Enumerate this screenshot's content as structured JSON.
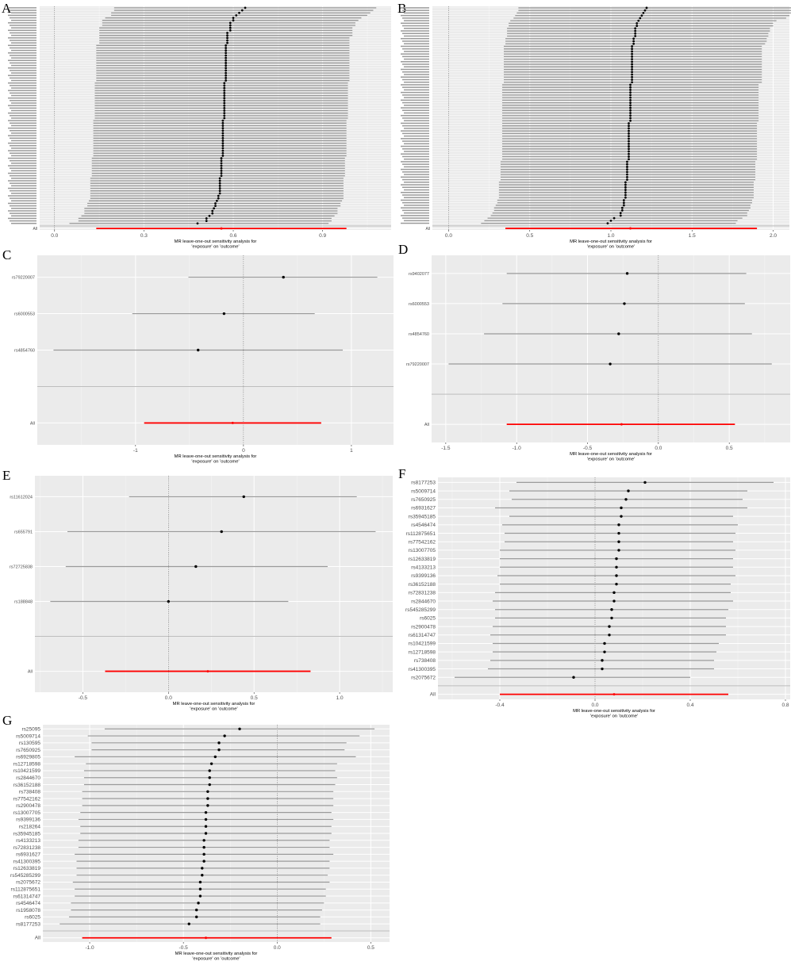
{
  "colors": {
    "panel_bg": "#ebebeb",
    "grid": "#ffffff",
    "ci": "#9a9a9a",
    "point": "#000000",
    "overall": "#ff0000",
    "separator": "#bdbdbd",
    "null_line": "#555555"
  },
  "panels": [
    {
      "letter": "A",
      "chart_type": "forest",
      "xlabel": [
        "MR leave-one-out sensitivity analysis for",
        "'exposure' on 'outcome'"
      ],
      "ticks": [
        "0.0",
        "0.3",
        "0.6",
        "0.9"
      ],
      "xlim": [
        -0.05,
        1.13
      ],
      "null_value": 0,
      "overall_label": "All",
      "overall": {
        "b": 0.56,
        "lo": 0.14,
        "hi": 0.98
      },
      "b": [
        0.64,
        0.63,
        0.62,
        0.61,
        0.6,
        0.6,
        0.59,
        0.59,
        0.59,
        0.59,
        0.58,
        0.58,
        0.58,
        0.58,
        0.58,
        0.575,
        0.575,
        0.575,
        0.575,
        0.575,
        0.575,
        0.575,
        0.575,
        0.575,
        0.575,
        0.575,
        0.575,
        0.575,
        0.575,
        0.575,
        0.57,
        0.57,
        0.57,
        0.57,
        0.57,
        0.57,
        0.57,
        0.57,
        0.57,
        0.57,
        0.57,
        0.57,
        0.57,
        0.57,
        0.57,
        0.565,
        0.565,
        0.565,
        0.565,
        0.565,
        0.565,
        0.565,
        0.565,
        0.565,
        0.565,
        0.565,
        0.565,
        0.565,
        0.565,
        0.565,
        0.56,
        0.56,
        0.56,
        0.56,
        0.56,
        0.56,
        0.56,
        0.56,
        0.555,
        0.555,
        0.555,
        0.555,
        0.555,
        0.555,
        0.555,
        0.55,
        0.55,
        0.545,
        0.54,
        0.54,
        0.535,
        0.53,
        0.53,
        0.52,
        0.51,
        0.51,
        0.48
      ],
      "lo": [
        0.2,
        0.2,
        0.19,
        0.19,
        0.17,
        0.16,
        0.16,
        0.16,
        0.15,
        0.15,
        0.15,
        0.15,
        0.15,
        0.15,
        0.15,
        0.14,
        0.14,
        0.14,
        0.14,
        0.14,
        0.14,
        0.14,
        0.14,
        0.14,
        0.14,
        0.14,
        0.14,
        0.14,
        0.14,
        0.14,
        0.135,
        0.135,
        0.135,
        0.135,
        0.135,
        0.135,
        0.135,
        0.135,
        0.135,
        0.135,
        0.135,
        0.135,
        0.135,
        0.135,
        0.135,
        0.13,
        0.13,
        0.13,
        0.13,
        0.13,
        0.13,
        0.13,
        0.13,
        0.13,
        0.13,
        0.13,
        0.13,
        0.13,
        0.13,
        0.13,
        0.125,
        0.125,
        0.125,
        0.125,
        0.125,
        0.125,
        0.125,
        0.125,
        0.12,
        0.12,
        0.12,
        0.12,
        0.12,
        0.12,
        0.12,
        0.12,
        0.12,
        0.115,
        0.11,
        0.11,
        0.1,
        0.1,
        0.1,
        0.09,
        0.08,
        0.08,
        0.05
      ],
      "hi": [
        1.08,
        1.07,
        1.06,
        1.05,
        1.03,
        1.02,
        1.01,
        1.01,
        1.0,
        1.0,
        1.0,
        1.0,
        0.99,
        0.99,
        0.99,
        0.99,
        0.99,
        0.99,
        0.99,
        0.99,
        0.99,
        0.99,
        0.99,
        0.99,
        0.99,
        0.99,
        0.99,
        0.99,
        0.99,
        0.99,
        0.985,
        0.985,
        0.985,
        0.985,
        0.985,
        0.985,
        0.985,
        0.985,
        0.985,
        0.985,
        0.985,
        0.985,
        0.985,
        0.985,
        0.985,
        0.98,
        0.98,
        0.98,
        0.98,
        0.98,
        0.98,
        0.98,
        0.98,
        0.98,
        0.98,
        0.98,
        0.98,
        0.98,
        0.98,
        0.98,
        0.975,
        0.975,
        0.975,
        0.975,
        0.975,
        0.975,
        0.975,
        0.975,
        0.97,
        0.97,
        0.97,
        0.97,
        0.97,
        0.97,
        0.97,
        0.97,
        0.97,
        0.965,
        0.96,
        0.96,
        0.95,
        0.95,
        0.95,
        0.94,
        0.93,
        0.93,
        0.92
      ]
    },
    {
      "letter": "B",
      "chart_type": "forest",
      "xlabel": [
        "MR leave-one-out sensitivity analysis for",
        "'exposure' on 'outcome'"
      ],
      "ticks": [
        "0.0",
        "0.5",
        "1.0",
        "1.5",
        "2.0"
      ],
      "xlim": [
        -0.1,
        2.1
      ],
      "null_value": 0,
      "overall_label": "All",
      "overall": {
        "b": 1.12,
        "lo": 0.35,
        "hi": 1.9
      },
      "b": [
        1.22,
        1.21,
        1.2,
        1.19,
        1.18,
        1.17,
        1.16,
        1.16,
        1.15,
        1.15,
        1.15,
        1.15,
        1.14,
        1.14,
        1.14,
        1.13,
        1.13,
        1.13,
        1.13,
        1.13,
        1.13,
        1.13,
        1.13,
        1.13,
        1.13,
        1.13,
        1.13,
        1.13,
        1.13,
        1.13,
        1.12,
        1.12,
        1.12,
        1.12,
        1.12,
        1.12,
        1.12,
        1.12,
        1.12,
        1.12,
        1.12,
        1.12,
        1.12,
        1.12,
        1.12,
        1.11,
        1.11,
        1.11,
        1.11,
        1.11,
        1.11,
        1.11,
        1.11,
        1.11,
        1.11,
        1.11,
        1.11,
        1.11,
        1.11,
        1.11,
        1.1,
        1.1,
        1.1,
        1.1,
        1.1,
        1.1,
        1.1,
        1.1,
        1.09,
        1.09,
        1.09,
        1.09,
        1.09,
        1.09,
        1.09,
        1.08,
        1.08,
        1.08,
        1.07,
        1.07,
        1.06,
        1.06,
        1.02,
        1.0,
        0.98
      ],
      "lo": [
        0.43,
        0.43,
        0.42,
        0.41,
        0.4,
        0.38,
        0.37,
        0.37,
        0.36,
        0.36,
        0.36,
        0.36,
        0.35,
        0.35,
        0.35,
        0.34,
        0.34,
        0.34,
        0.34,
        0.34,
        0.34,
        0.34,
        0.34,
        0.34,
        0.34,
        0.34,
        0.34,
        0.34,
        0.34,
        0.34,
        0.33,
        0.33,
        0.33,
        0.33,
        0.33,
        0.33,
        0.33,
        0.33,
        0.33,
        0.33,
        0.33,
        0.33,
        0.33,
        0.33,
        0.33,
        0.33,
        0.33,
        0.33,
        0.33,
        0.33,
        0.33,
        0.33,
        0.33,
        0.33,
        0.33,
        0.33,
        0.33,
        0.33,
        0.33,
        0.33,
        0.32,
        0.32,
        0.32,
        0.32,
        0.32,
        0.32,
        0.32,
        0.32,
        0.31,
        0.31,
        0.31,
        0.31,
        0.31,
        0.31,
        0.31,
        0.3,
        0.3,
        0.29,
        0.28,
        0.28,
        0.27,
        0.26,
        0.24,
        0.22,
        0.2
      ],
      "hi": [
        2.14,
        2.13,
        2.12,
        2.1,
        2.08,
        2.02,
        2.0,
        2.0,
        1.98,
        1.98,
        1.97,
        1.97,
        1.96,
        1.96,
        1.95,
        1.93,
        1.93,
        1.93,
        1.93,
        1.93,
        1.93,
        1.93,
        1.93,
        1.93,
        1.93,
        1.93,
        1.93,
        1.93,
        1.93,
        1.93,
        1.91,
        1.91,
        1.91,
        1.91,
        1.91,
        1.91,
        1.91,
        1.91,
        1.91,
        1.91,
        1.91,
        1.91,
        1.91,
        1.91,
        1.91,
        1.9,
        1.9,
        1.9,
        1.9,
        1.9,
        1.9,
        1.9,
        1.9,
        1.9,
        1.9,
        1.9,
        1.9,
        1.9,
        1.9,
        1.9,
        1.89,
        1.89,
        1.89,
        1.89,
        1.89,
        1.89,
        1.89,
        1.89,
        1.88,
        1.88,
        1.88,
        1.88,
        1.88,
        1.88,
        1.88,
        1.87,
        1.87,
        1.86,
        1.86,
        1.85,
        1.84,
        1.84,
        1.81,
        1.78,
        1.77
      ]
    },
    {
      "letter": "C",
      "chart_type": "forest",
      "xlabel": [
        "MR leave-one-out sensitivity analysis for",
        "'exposure' on 'outcome'"
      ],
      "ticks": [
        "-1",
        "0",
        "1"
      ],
      "xlim": [
        -1.91,
        1.39
      ],
      "null_value": 0,
      "overall_label": "All",
      "overall": {
        "b": -0.1,
        "lo": -0.92,
        "hi": 0.72
      },
      "snps": [
        "rs79220007",
        "rs6000553",
        "rs4854760"
      ],
      "b": [
        0.37,
        -0.18,
        -0.42
      ],
      "lo": [
        -0.51,
        -1.03,
        -1.76
      ],
      "hi": [
        1.24,
        0.66,
        0.92
      ]
    },
    {
      "letter": "D",
      "chart_type": "forest",
      "xlabel": [
        "MR leave-one-out sensitivity analysis for",
        "'exposure' on 'outcome'"
      ],
      "ticks": [
        "-1.5",
        "-1.0",
        "-0.5",
        "0.0",
        "0.5"
      ],
      "xlim": [
        -1.6,
        0.93
      ],
      "null_value": 0,
      "overall_label": "All",
      "overall": {
        "b": -0.26,
        "lo": -1.07,
        "hi": 0.54
      },
      "snps": [
        "rs9402077",
        "rs6000553",
        "rs4854760",
        "rs79220007"
      ],
      "b": [
        -0.22,
        -0.24,
        -0.28,
        -0.34
      ],
      "lo": [
        -1.07,
        -1.1,
        -1.23,
        -1.48
      ],
      "hi": [
        0.62,
        0.61,
        0.66,
        0.8
      ]
    },
    {
      "letter": "E",
      "chart_type": "forest",
      "xlabel": [
        "MR leave-one-out sensitivity analysis for",
        "'exposure' on 'outcome'"
      ],
      "ticks": [
        "-0.5",
        "0.0",
        "0.5",
        "1.0"
      ],
      "xlim": [
        -0.78,
        1.31
      ],
      "null_value": 0,
      "overall_label": "All",
      "overall": {
        "b": 0.23,
        "lo": -0.37,
        "hi": 0.83
      },
      "snps": [
        "rs11612024",
        "rs655791",
        "rs72725838",
        "rs188848"
      ],
      "b": [
        0.44,
        0.31,
        0.16,
        0.0
      ],
      "lo": [
        -0.23,
        -0.59,
        -0.6,
        -0.69
      ],
      "hi": [
        1.1,
        1.21,
        0.93,
        0.7
      ]
    },
    {
      "letter": "F",
      "chart_type": "forest",
      "xlabel": [
        "MR leave-one-out sensitivity analysis for",
        "'exposure' on 'outcome'"
      ],
      "ticks": [
        "-0.4",
        "0.0",
        "0.4",
        "0.8"
      ],
      "xlim": [
        -0.66,
        0.82
      ],
      "null_value": 0,
      "overall_label": "All",
      "overall": {
        "b": 0.08,
        "lo": -0.4,
        "hi": 0.56
      },
      "snps": [
        "rs8177253",
        "rs5009714",
        "rs7650925",
        "rs6931627",
        "rs35945185",
        "rs4546474",
        "rs112875651",
        "rs77542162",
        "rs13007705",
        "rs12633819",
        "rs4133213",
        "rs9399136",
        "rs36152188",
        "rs72831238",
        "rs2844670",
        "rs545285299",
        "rs6025",
        "rs2900478",
        "rs61314747",
        "rs10421599",
        "rs12718598",
        "rs738408",
        "rs41300395",
        "rs2075672"
      ],
      "b": [
        0.21,
        0.14,
        0.13,
        0.11,
        0.11,
        0.1,
        0.1,
        0.1,
        0.1,
        0.09,
        0.09,
        0.09,
        0.09,
        0.08,
        0.08,
        0.07,
        0.07,
        0.06,
        0.06,
        0.04,
        0.04,
        0.03,
        0.03,
        -0.09
      ],
      "lo": [
        -0.33,
        -0.36,
        -0.35,
        -0.42,
        -0.36,
        -0.39,
        -0.38,
        -0.38,
        -0.4,
        -0.4,
        -0.4,
        -0.41,
        -0.4,
        -0.42,
        -0.43,
        -0.42,
        -0.42,
        -0.43,
        -0.44,
        -0.43,
        -0.43,
        -0.44,
        -0.45,
        -0.59
      ],
      "hi": [
        0.75,
        0.64,
        0.62,
        0.64,
        0.58,
        0.6,
        0.59,
        0.58,
        0.59,
        0.58,
        0.58,
        0.59,
        0.57,
        0.57,
        0.58,
        0.56,
        0.55,
        0.55,
        0.55,
        0.52,
        0.51,
        0.5,
        0.5,
        0.4
      ]
    },
    {
      "letter": "G",
      "chart_type": "forest",
      "xlabel": [
        "MR leave-one-out sensitivity analysis for",
        "'exposure' on 'outcome'"
      ],
      "ticks": [
        "-1.0",
        "-0.5",
        "0.0",
        "0.5"
      ],
      "xlim": [
        -1.25,
        0.6
      ],
      "null_value": 0,
      "overall_label": "All",
      "overall": {
        "b": -0.38,
        "lo": -1.04,
        "hi": 0.29
      },
      "snps": [
        "rs25095",
        "rs5009714",
        "rs130595",
        "rs7650925",
        "rs6929805",
        "rs12718598",
        "rs10421599",
        "rs2844670",
        "rs36152188",
        "rs738408",
        "rs77542162",
        "rs2900478",
        "rs13007705",
        "rs9399136",
        "rs218264",
        "rs35945185",
        "rs4133213",
        "rs72831238",
        "rs6931627",
        "rs41300395",
        "rs12633819",
        "rs545285299",
        "rs2075672",
        "rs112875651",
        "rs61314747",
        "rs4546474",
        "rs1958078",
        "rs6025",
        "rs8177253"
      ],
      "b": [
        -0.2,
        -0.28,
        -0.31,
        -0.31,
        -0.33,
        -0.35,
        -0.36,
        -0.36,
        -0.36,
        -0.37,
        -0.37,
        -0.37,
        -0.38,
        -0.38,
        -0.38,
        -0.38,
        -0.39,
        -0.39,
        -0.39,
        -0.39,
        -0.4,
        -0.4,
        -0.41,
        -0.41,
        -0.41,
        -0.42,
        -0.43,
        -0.43,
        -0.47
      ],
      "lo": [
        -0.92,
        -1.01,
        -0.99,
        -0.99,
        -1.08,
        -1.02,
        -1.03,
        -1.03,
        -1.03,
        -1.04,
        -1.04,
        -1.04,
        -1.05,
        -1.06,
        -1.05,
        -1.05,
        -1.06,
        -1.06,
        -1.08,
        -1.07,
        -1.07,
        -1.07,
        -1.09,
        -1.08,
        -1.08,
        -1.1,
        -1.1,
        -1.11,
        -1.16
      ],
      "hi": [
        0.52,
        0.44,
        0.37,
        0.36,
        0.42,
        0.32,
        0.31,
        0.32,
        0.31,
        0.3,
        0.3,
        0.3,
        0.29,
        0.3,
        0.29,
        0.29,
        0.28,
        0.28,
        0.3,
        0.28,
        0.28,
        0.27,
        0.28,
        0.26,
        0.26,
        0.25,
        0.24,
        0.23,
        0.23
      ]
    }
  ]
}
